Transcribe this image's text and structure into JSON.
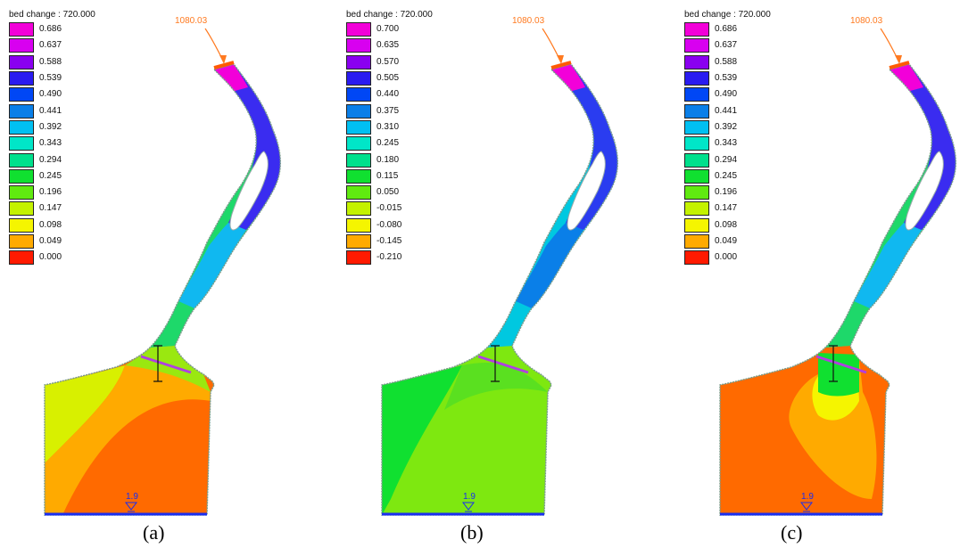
{
  "panels": [
    {
      "id": "a",
      "caption": "(a)",
      "legend_title": "bed change : 720.000",
      "legend_items": [
        {
          "label": "0.686",
          "color": "#f200d9"
        },
        {
          "label": "0.637",
          "color": "#d800f0"
        },
        {
          "label": "0.588",
          "color": "#8a00f0"
        },
        {
          "label": "0.539",
          "color": "#2a1bf0"
        },
        {
          "label": "0.490",
          "color": "#0047f5"
        },
        {
          "label": "0.441",
          "color": "#0a7fe8"
        },
        {
          "label": "0.392",
          "color": "#00c0f2"
        },
        {
          "label": "0.343",
          "color": "#00e6c8"
        },
        {
          "label": "0.294",
          "color": "#00e08c"
        },
        {
          "label": "0.245",
          "color": "#10e030"
        },
        {
          "label": "0.196",
          "color": "#60ea10"
        },
        {
          "label": "0.147",
          "color": "#c4f200"
        },
        {
          "label": "0.098",
          "color": "#f5f500"
        },
        {
          "label": "0.049",
          "color": "#ffaa00"
        },
        {
          "label": "0.000",
          "color": "#ff1a00"
        }
      ],
      "inflow_label": "1080.03",
      "water_level_label": "1.9",
      "fills": {
        "upper": "#3a2cf0",
        "upper_mid": "#10b8f0",
        "middle": "#1ed86a",
        "lower_left": "#d8f000",
        "lower_main": "#ff6a00",
        "lower_band": "#ffaa00",
        "top_cap": "#f200d9"
      }
    },
    {
      "id": "b",
      "caption": "(b)",
      "legend_title": "bed change : 720.000",
      "legend_items": [
        {
          "label": "0.700",
          "color": "#f200d9"
        },
        {
          "label": "0.635",
          "color": "#d800f0"
        },
        {
          "label": "0.570",
          "color": "#8a00f0"
        },
        {
          "label": "0.505",
          "color": "#2a1bf0"
        },
        {
          "label": "0.440",
          "color": "#0047f5"
        },
        {
          "label": "0.375",
          "color": "#0a7fe8"
        },
        {
          "label": "0.310",
          "color": "#00c0f2"
        },
        {
          "label": "0.245",
          "color": "#00e6c8"
        },
        {
          "label": "0.180",
          "color": "#00e08c"
        },
        {
          "label": "0.115",
          "color": "#10e030"
        },
        {
          "label": "0.050",
          "color": "#60ea10"
        },
        {
          "label": "-0.015",
          "color": "#c4f200"
        },
        {
          "label": "-0.080",
          "color": "#f5f500"
        },
        {
          "label": "-0.145",
          "color": "#ffaa00"
        },
        {
          "label": "-0.210",
          "color": "#ff1a00"
        }
      ],
      "inflow_label": "1080.03",
      "water_level_label": "1.9",
      "fills": {
        "upper": "#2a3cf0",
        "upper_mid": "#0a7fe8",
        "middle": "#00c8e0",
        "lower_left": "#10e030",
        "lower_main": "#7ee810",
        "lower_band": "#5ae020",
        "top_cap": "#f200d9"
      }
    },
    {
      "id": "c",
      "caption": "(c)",
      "legend_title": "bed change : 720.000",
      "legend_items": [
        {
          "label": "0.686",
          "color": "#f200d9"
        },
        {
          "label": "0.637",
          "color": "#d800f0"
        },
        {
          "label": "0.588",
          "color": "#8a00f0"
        },
        {
          "label": "0.539",
          "color": "#2a1bf0"
        },
        {
          "label": "0.490",
          "color": "#0047f5"
        },
        {
          "label": "0.441",
          "color": "#0a7fe8"
        },
        {
          "label": "0.392",
          "color": "#00c0f2"
        },
        {
          "label": "0.343",
          "color": "#00e6c8"
        },
        {
          "label": "0.294",
          "color": "#00e08c"
        },
        {
          "label": "0.245",
          "color": "#10e030"
        },
        {
          "label": "0.196",
          "color": "#60ea10"
        },
        {
          "label": "0.147",
          "color": "#c4f200"
        },
        {
          "label": "0.098",
          "color": "#f5f500"
        },
        {
          "label": "0.049",
          "color": "#ffaa00"
        },
        {
          "label": "0.000",
          "color": "#ff1a00"
        }
      ],
      "inflow_label": "1080.03",
      "water_level_label": "1.9",
      "fills": {
        "upper": "#3a2cf0",
        "upper_mid": "#10b8f0",
        "middle": "#1ed86a",
        "lower_left": "#ff6a00",
        "lower_main": "#ff6a00",
        "lower_band": "#ffaa00",
        "top_cap": "#f200d9"
      }
    }
  ]
}
